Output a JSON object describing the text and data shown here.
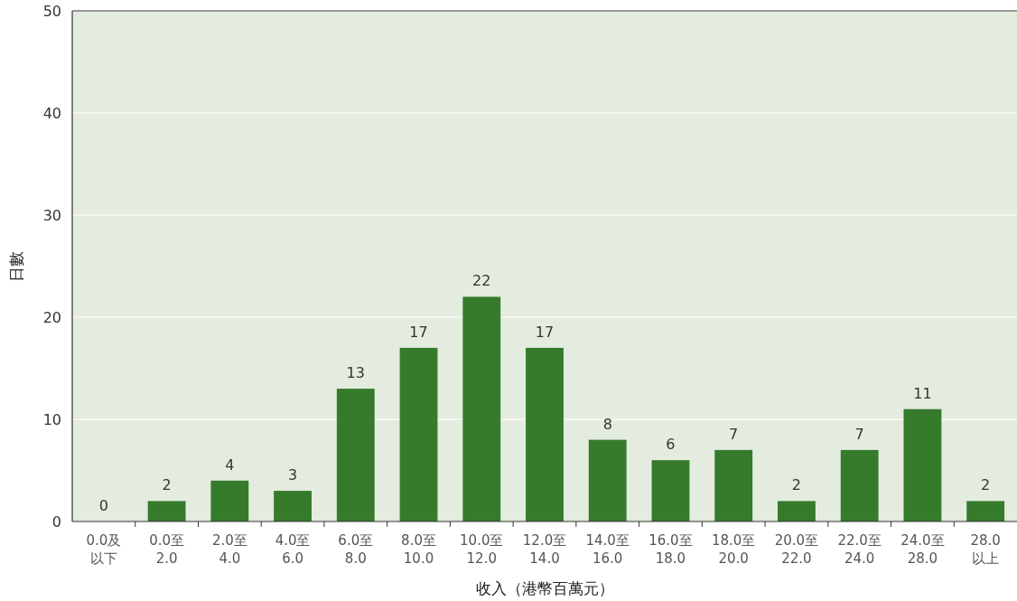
{
  "chart_data": {
    "type": "bar",
    "xlabel": "收入（港幣百萬元）",
    "ylabel": "日數",
    "categories": [
      "0.0及以下",
      "0.0至\n2.0",
      "2.0至\n4.0",
      "4.0至\n6.0",
      "6.0至\n8.0",
      "8.0至\n10.0",
      "10.0至\n12.0",
      "12.0至\n14.0",
      "14.0至\n16.0",
      "16.0至\n18.0",
      "18.0至\n20.0",
      "20.0至\n22.0",
      "22.0至\n24.0",
      "24.0至\n28.0",
      "28.0\n以上"
    ],
    "values": [
      0,
      2,
      4,
      3,
      13,
      17,
      22,
      17,
      8,
      6,
      7,
      2,
      7,
      11,
      2
    ],
    "color": "#367b2c",
    "ylim": [
      0,
      50
    ],
    "yticks": [
      0,
      10,
      20,
      30,
      40,
      50
    ],
    "grid": "y",
    "data_labels": true
  }
}
